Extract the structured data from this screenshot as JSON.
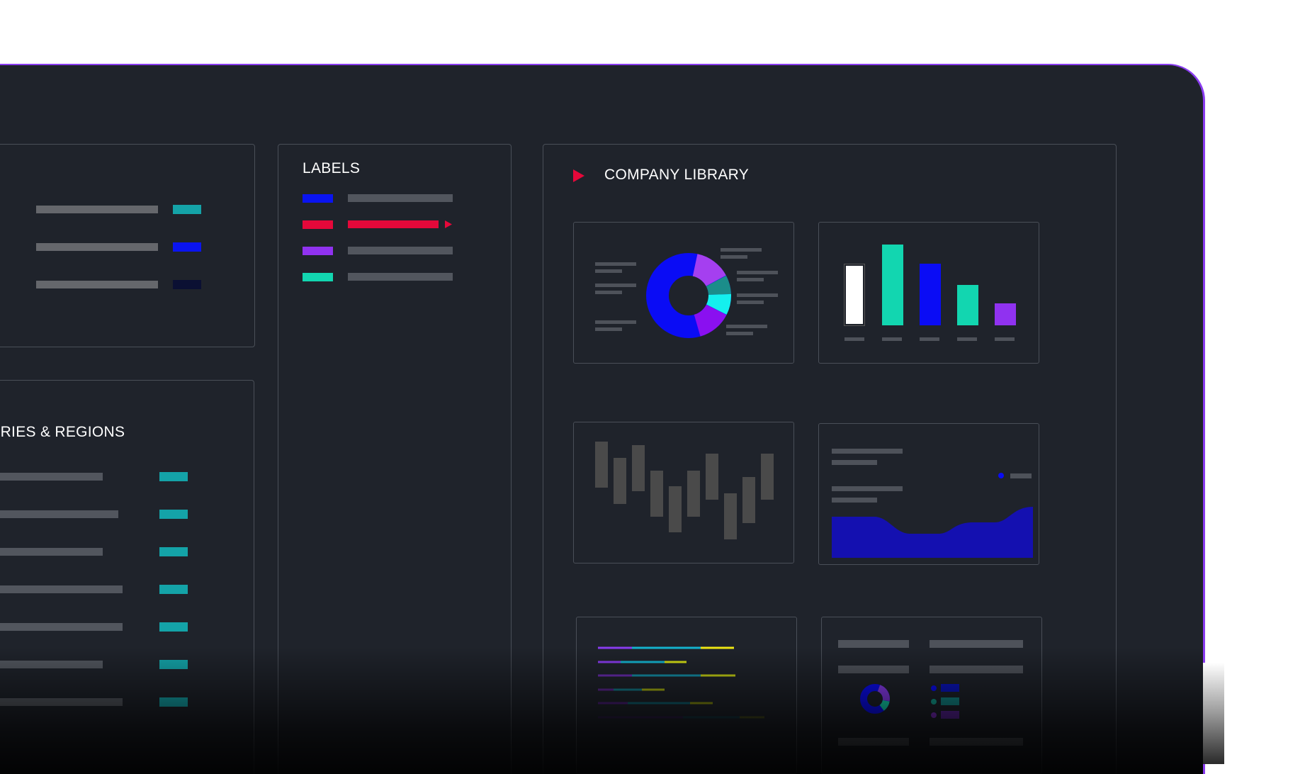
{
  "panels": {
    "top_left": {
      "rows": [
        {
          "swatch_color": "#14a3a8"
        },
        {
          "swatch_color": "#0a14f0"
        },
        {
          "swatch_color": "#0b1033"
        }
      ]
    },
    "countries": {
      "title": "NTRIES & REGIONS",
      "rows": [
        {
          "swatch_color": "#14a3a8"
        },
        {
          "swatch_color": "#14a3a8"
        },
        {
          "swatch_color": "#14a3a8"
        },
        {
          "swatch_color": "#14a3a8"
        },
        {
          "swatch_color": "#14a3a8"
        },
        {
          "swatch_color": "#14a3a8"
        },
        {
          "swatch_color": "#14a3a8"
        }
      ]
    },
    "labels": {
      "title": "LABELS",
      "items": [
        {
          "color": "#0a14f0",
          "active": false
        },
        {
          "color": "#e5083a",
          "active": true
        },
        {
          "color": "#9032f0",
          "active": false
        },
        {
          "color": "#12d6b0",
          "active": false
        }
      ]
    },
    "library": {
      "title": "COMPANY LIBRARY",
      "play_icon_color": "#e5083a",
      "thumbnails": [
        {
          "kind": "donut-chart"
        },
        {
          "kind": "bar-chart"
        },
        {
          "kind": "candlestick-chart"
        },
        {
          "kind": "area-chart"
        },
        {
          "kind": "multi-line-chart"
        },
        {
          "kind": "summary-table"
        }
      ]
    }
  },
  "colors": {
    "background": "#1f232b",
    "accent_purple": "#8a3cf0",
    "accent_teal": "#12d6b0",
    "accent_blue": "#0a14f0",
    "accent_red": "#e5083a"
  }
}
